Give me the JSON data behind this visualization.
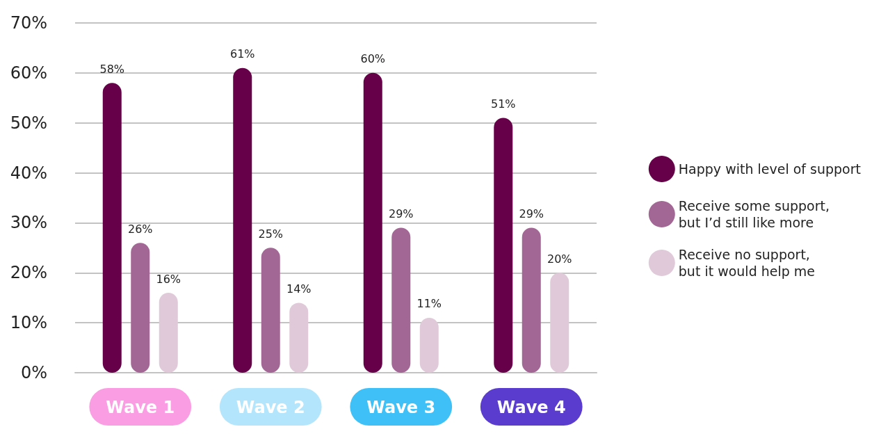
{
  "chart_data": {
    "type": "bar",
    "categories": [
      "Wave 1",
      "Wave 2",
      "Wave 3",
      "Wave 4"
    ],
    "series": [
      {
        "name": "Happy with level of support",
        "color": "#660049",
        "values": [
          58,
          61,
          60,
          51
        ],
        "value_labels": [
          "58%",
          "61%",
          "60%",
          "51%"
        ]
      },
      {
        "name": "Receive some support, but I’d still like more",
        "color": "#a36795",
        "values": [
          26,
          25,
          29,
          29
        ],
        "value_labels": [
          "26%",
          "25%",
          "29%",
          "29%"
        ]
      },
      {
        "name": "Receive no support, but it would help me",
        "color": "#e0cad9",
        "values": [
          16,
          14,
          11,
          20
        ],
        "value_labels": [
          "16%",
          "14%",
          "11%",
          "20%"
        ]
      }
    ],
    "ylim": [
      0,
      70
    ],
    "yticks": [
      {
        "value": 0,
        "label": "0%"
      },
      {
        "value": 10,
        "label": "10%"
      },
      {
        "value": 20,
        "label": "20%"
      },
      {
        "value": 30,
        "label": "30%"
      },
      {
        "value": 40,
        "label": "40%"
      },
      {
        "value": 50,
        "label": "50%"
      },
      {
        "value": 60,
        "label": "60%"
      },
      {
        "value": 70,
        "label": "70%"
      }
    ],
    "grid": "y",
    "legend": "right"
  }
}
